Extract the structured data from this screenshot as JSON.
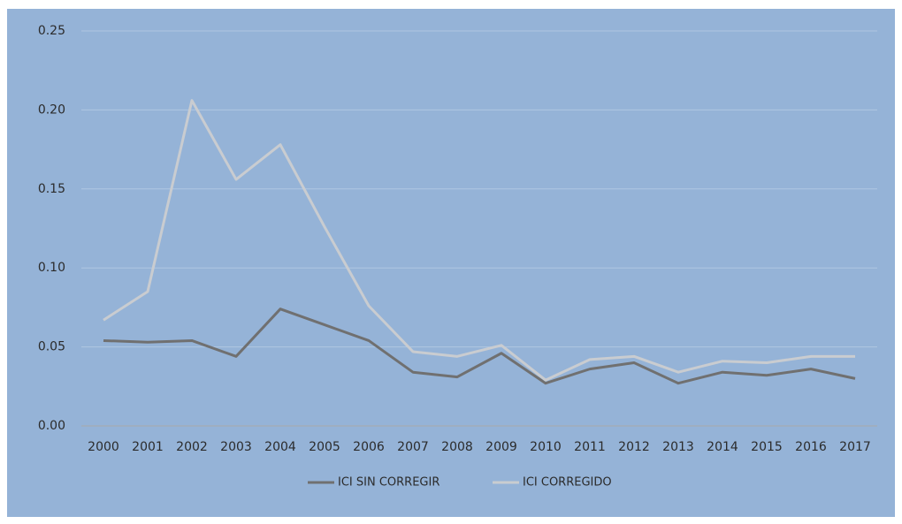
{
  "chart_data": {
    "type": "line",
    "categories": [
      "2000",
      "2001",
      "2002",
      "2003",
      "2004",
      "2005",
      "2006",
      "2007",
      "2008",
      "2009",
      "2010",
      "2011",
      "2012",
      "2013",
      "2014",
      "2015",
      "2016",
      "2017"
    ],
    "series": [
      {
        "name": "ICI SIN CORREGIR",
        "color": "#707070",
        "values": [
          0.054,
          0.053,
          0.054,
          0.044,
          0.074,
          0.064,
          0.054,
          0.034,
          0.031,
          0.046,
          0.027,
          0.036,
          0.04,
          0.027,
          0.034,
          0.032,
          0.036,
          0.03
        ]
      },
      {
        "name": "ICI CORREGIDO",
        "color": "#c9ccd0",
        "values": [
          0.067,
          0.085,
          0.206,
          0.156,
          0.178,
          0.126,
          0.076,
          0.047,
          0.044,
          0.051,
          0.029,
          0.042,
          0.044,
          0.034,
          0.041,
          0.04,
          0.044,
          0.044
        ]
      }
    ],
    "ylim": [
      0,
      0.25
    ],
    "yticks": [
      {
        "value": 0,
        "label": "0.00"
      },
      {
        "value": 0.05,
        "label": "0.05"
      },
      {
        "value": 0.1,
        "label": "0.10"
      },
      {
        "value": 0.15,
        "label": "0.15"
      },
      {
        "value": 0.2,
        "label": "0.20"
      },
      {
        "value": 0.25,
        "label": "0.25"
      }
    ],
    "grid": true,
    "legend": "bottom"
  }
}
